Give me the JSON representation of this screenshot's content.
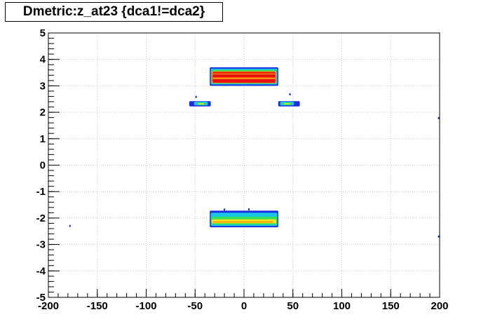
{
  "chart_data": {
    "type": "heatmap",
    "title": "Dmetric:z_at23 {dca1!=dca2}",
    "xlim": [
      -200,
      200
    ],
    "ylim": [
      -5,
      5
    ],
    "grid": true,
    "x_tick_labels": [
      "-200",
      "-150",
      "-100",
      "-50",
      "0",
      "50",
      "100",
      "150",
      "200"
    ],
    "y_tick_labels": [
      "-5",
      "-4",
      "-3",
      "-2",
      "-1",
      "0",
      "1",
      "2",
      "3",
      "4",
      "5"
    ],
    "x_major_step": 50,
    "x_minor_step": 10,
    "y_major_step": 1,
    "y_minor_step": 0.2,
    "colors": {
      "level_1": "#1a2de0",
      "level_2": "#19c6e6",
      "level_3": "#2fe05a",
      "level_4": "#f6e21c",
      "level_5": "#ff8a10",
      "level_6": "#e60d0d",
      "grid": "#c8c8c8",
      "axis": "#000000"
    },
    "clusters": [
      {
        "name": "upper-band",
        "x": [
          -35,
          35
        ],
        "y": [
          3.0,
          3.7
        ],
        "layers": [
          {
            "x": [
              -35,
              35
            ],
            "y": [
              3.0,
              3.7
            ],
            "level": "level_1"
          },
          {
            "x": [
              -34,
              34
            ],
            "y": [
              3.05,
              3.65
            ],
            "level": "level_2"
          },
          {
            "x": [
              -33,
              33
            ],
            "y": [
              3.08,
              3.6
            ],
            "level": "level_3"
          },
          {
            "x": [
              -33,
              33
            ],
            "y": [
              3.1,
              3.55
            ],
            "level": "level_5"
          },
          {
            "x": [
              -32,
              32
            ],
            "y": [
              3.12,
              3.52
            ],
            "level": "level_6"
          },
          {
            "x": [
              -32,
              32
            ],
            "y": [
              3.25,
              3.32
            ],
            "level": "level_5"
          },
          {
            "x": [
              -32,
              32
            ],
            "y": [
              3.43,
              3.47
            ],
            "level": "level_5"
          }
        ]
      },
      {
        "name": "left-blob",
        "x": [
          -56,
          -34
        ],
        "y": [
          2.2,
          2.55
        ],
        "layers": [
          {
            "x": [
              -56,
              -34
            ],
            "y": [
              2.22,
              2.42
            ],
            "level": "level_1"
          },
          {
            "x": [
              -51,
              -37
            ],
            "y": [
              2.26,
              2.4
            ],
            "level": "level_2"
          },
          {
            "x": [
              -48,
              -39
            ],
            "y": [
              2.28,
              2.36
            ],
            "level": "level_3"
          },
          {
            "x": [
              -47,
              -41
            ],
            "y": [
              2.3,
              2.34
            ],
            "level": "level_4"
          }
        ]
      },
      {
        "name": "right-blob",
        "x": [
          35,
          57
        ],
        "y": [
          2.2,
          2.7
        ],
        "layers": [
          {
            "x": [
              35,
              57
            ],
            "y": [
              2.22,
              2.42
            ],
            "level": "level_1"
          },
          {
            "x": [
              37,
              51
            ],
            "y": [
              2.26,
              2.4
            ],
            "level": "level_2"
          },
          {
            "x": [
              39,
              49
            ],
            "y": [
              2.28,
              2.36
            ],
            "level": "level_3"
          },
          {
            "x": [
              41,
              47
            ],
            "y": [
              2.3,
              2.34
            ],
            "level": "level_4"
          }
        ]
      },
      {
        "name": "lower-band",
        "x": [
          -35,
          35
        ],
        "y": [
          -2.35,
          -1.7
        ],
        "layers": [
          {
            "x": [
              -35,
              35
            ],
            "y": [
              -2.35,
              -1.72
            ],
            "level": "level_1"
          },
          {
            "x": [
              -34,
              34
            ],
            "y": [
              -2.3,
              -1.8
            ],
            "level": "level_2"
          },
          {
            "x": [
              -33,
              34
            ],
            "y": [
              -2.25,
              -1.95
            ],
            "level": "level_3"
          },
          {
            "x": [
              -33,
              33
            ],
            "y": [
              -2.2,
              -2.05
            ],
            "level": "level_4"
          },
          {
            "x": [
              -32,
              30
            ],
            "y": [
              -2.17,
              -2.13
            ],
            "level": "level_5"
          }
        ]
      }
    ],
    "points": [
      {
        "x": -178,
        "y": -2.3,
        "level": "level_1"
      },
      {
        "x": 199,
        "y": 1.78,
        "level": "level_1"
      },
      {
        "x": 199,
        "y": -2.7,
        "level": "level_1"
      },
      {
        "x": -49,
        "y": 2.58,
        "level": "level_1"
      },
      {
        "x": 47,
        "y": 2.68,
        "level": "level_1"
      },
      {
        "x": -20,
        "y": -1.68,
        "level": "level_1"
      },
      {
        "x": 5,
        "y": -1.67,
        "level": "level_1"
      }
    ]
  }
}
